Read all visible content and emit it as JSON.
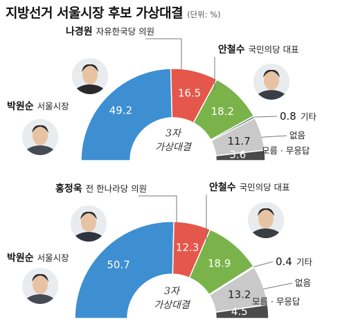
{
  "header": {
    "title": "지방선거 서울시장 후보 가상대결",
    "unit": "(단위: %)"
  },
  "colors": {
    "park": "#3d8fd1",
    "rival": "#e5574a",
    "ahn": "#7ab34a",
    "etc": "#6a7c87",
    "none": "#c9c9c9",
    "unknown": "#4a4a4a"
  },
  "chart_data": [
    {
      "type": "pie",
      "variant": "semicircle-donut",
      "center_label": [
        "3자",
        "가상대결"
      ],
      "slices": [
        {
          "name": "박원순",
          "role": "서울시장",
          "value": 49.2,
          "label": "49.2",
          "color_key": "park"
        },
        {
          "name": "나경원",
          "role": "자유한국당 의원",
          "value": 16.5,
          "label": "16.5",
          "color_key": "rival"
        },
        {
          "name": "안철수",
          "role": "국민의당 대표",
          "value": 18.2,
          "label": "18.2",
          "color_key": "ahn"
        },
        {
          "name": "",
          "role": "기타",
          "value": 0.8,
          "label": "0.8",
          "color_key": "etc"
        },
        {
          "name": "",
          "role": "없음",
          "value": 11.7,
          "label": "11.7",
          "color_key": "none"
        },
        {
          "name": "",
          "role": "모름 · 무응답",
          "value": 3.6,
          "label": "3.6",
          "color_key": "unknown"
        }
      ]
    },
    {
      "type": "pie",
      "variant": "semicircle-donut",
      "center_label": [
        "3자",
        "가상대결"
      ],
      "slices": [
        {
          "name": "박원순",
          "role": "서울시장",
          "value": 50.7,
          "label": "50.7",
          "color_key": "park"
        },
        {
          "name": "홍정욱",
          "role": "전 한나라당 의원",
          "value": 12.3,
          "label": "12.3",
          "color_key": "rival"
        },
        {
          "name": "안철수",
          "role": "국민의당 대표",
          "value": 18.9,
          "label": "18.9",
          "color_key": "ahn"
        },
        {
          "name": "",
          "role": "기타",
          "value": 0.4,
          "label": "0.4",
          "color_key": "etc"
        },
        {
          "name": "",
          "role": "없음",
          "value": 13.2,
          "label": "13.2",
          "color_key": "none"
        },
        {
          "name": "",
          "role": "모름 · 무응답",
          "value": 4.5,
          "label": "4.5",
          "color_key": "unknown"
        }
      ]
    }
  ]
}
